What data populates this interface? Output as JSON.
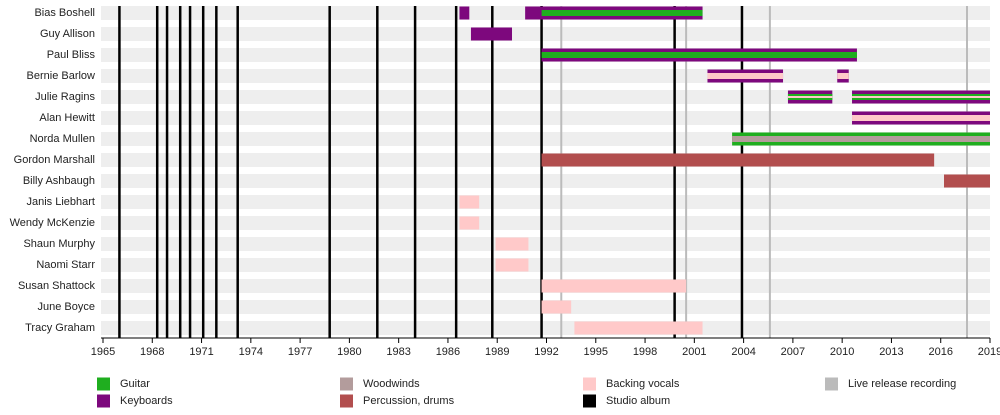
{
  "chart_data": {
    "type": "timeline",
    "xlim": [
      1965,
      2019
    ],
    "xticks": [
      1965,
      1968,
      1971,
      1974,
      1977,
      1980,
      1983,
      1986,
      1989,
      1992,
      1995,
      1998,
      2001,
      2004,
      2007,
      2010,
      2013,
      2016,
      2019
    ],
    "roles": [
      {
        "name": "Guitar",
        "color": "#1fae1f"
      },
      {
        "name": "Keyboards",
        "color": "#7d087d"
      },
      {
        "name": "Woodwinds",
        "color": "#b39c9c"
      },
      {
        "name": "Percussion, drums",
        "color": "#b24e4e"
      },
      {
        "name": "Backing vocals",
        "color": "#ffc9c9"
      }
    ],
    "events": [
      {
        "name": "Studio album",
        "color": "#000000",
        "x": [
          1966.0,
          1968.3,
          1968.9,
          1969.7,
          1970.3,
          1971.1,
          1971.9,
          1973.2,
          1978.8,
          1981.7,
          1984.0,
          1986.5,
          1988.7,
          1991.7,
          1999.8,
          2003.9
        ]
      },
      {
        "name": "Live release recording",
        "color": "#bbbbbb",
        "x": [
          1992.9,
          2000.5,
          2005.6,
          2017.6
        ]
      }
    ],
    "members": [
      {
        "name": "Bias Boshell",
        "periods": [
          {
            "role": "Keyboards",
            "start": 1986.7,
            "end": 1987.3
          },
          {
            "role": "Keyboards",
            "start": 1990.7,
            "end": 2001.5
          },
          {
            "role": "Guitar",
            "start": 1991.7,
            "end": 2001.5
          }
        ]
      },
      {
        "name": "Guy Allison",
        "periods": [
          {
            "role": "Keyboards",
            "start": 1987.4,
            "end": 1989.9
          }
        ]
      },
      {
        "name": "Paul Bliss",
        "periods": [
          {
            "role": "Keyboards",
            "start": 1991.7,
            "end": 2010.9
          },
          {
            "role": "Guitar",
            "start": 1991.7,
            "end": 2010.9
          }
        ]
      },
      {
        "name": "Bernie Barlow",
        "periods": [
          {
            "role": "Keyboards",
            "start": 2001.8,
            "end": 2006.4
          },
          {
            "role": "Backing vocals",
            "start": 2001.8,
            "end": 2006.4
          },
          {
            "role": "Keyboards",
            "start": 2009.7,
            "end": 2010.4
          },
          {
            "role": "Backing vocals",
            "start": 2009.7,
            "end": 2010.4
          }
        ]
      },
      {
        "name": "Julie Ragins",
        "periods": [
          {
            "role": "Keyboards",
            "start": 2006.7,
            "end": 2009.4
          },
          {
            "role": "Guitar",
            "start": 2006.7,
            "end": 2009.4
          },
          {
            "role": "Backing vocals",
            "start": 2006.7,
            "end": 2009.4
          },
          {
            "role": "Keyboards",
            "start": 2010.6,
            "end": 2019
          },
          {
            "role": "Guitar",
            "start": 2010.6,
            "end": 2019
          },
          {
            "role": "Backing vocals",
            "start": 2010.6,
            "end": 2019
          }
        ]
      },
      {
        "name": "Alan Hewitt",
        "periods": [
          {
            "role": "Keyboards",
            "start": 2010.6,
            "end": 2019
          },
          {
            "role": "Backing vocals",
            "start": 2010.6,
            "end": 2019
          }
        ]
      },
      {
        "name": "Norda Mullen",
        "periods": [
          {
            "role": "Guitar",
            "start": 2003.3,
            "end": 2019
          },
          {
            "role": "Woodwinds",
            "start": 2003.3,
            "end": 2019
          }
        ]
      },
      {
        "name": "Gordon Marshall",
        "periods": [
          {
            "role": "Percussion, drums",
            "start": 1991.7,
            "end": 2015.6
          }
        ]
      },
      {
        "name": "Billy Ashbaugh",
        "periods": [
          {
            "role": "Percussion, drums",
            "start": 2016.2,
            "end": 2019
          }
        ]
      },
      {
        "name": "Janis Liebhart",
        "periods": [
          {
            "role": "Backing vocals",
            "start": 1986.7,
            "end": 1987.9
          }
        ]
      },
      {
        "name": "Wendy McKenzie",
        "periods": [
          {
            "role": "Backing vocals",
            "start": 1986.7,
            "end": 1987.9
          }
        ]
      },
      {
        "name": "Shaun Murphy",
        "periods": [
          {
            "role": "Backing vocals",
            "start": 1988.9,
            "end": 1990.9
          }
        ]
      },
      {
        "name": "Naomi Starr",
        "periods": [
          {
            "role": "Backing vocals",
            "start": 1988.9,
            "end": 1990.9
          }
        ]
      },
      {
        "name": "Susan Shattock",
        "periods": [
          {
            "role": "Backing vocals",
            "start": 1991.7,
            "end": 2000.5
          }
        ]
      },
      {
        "name": "June Boyce",
        "periods": [
          {
            "role": "Backing vocals",
            "start": 1991.7,
            "end": 1993.5
          }
        ]
      },
      {
        "name": "Tracy Graham",
        "periods": [
          {
            "role": "Backing vocals",
            "start": 1993.7,
            "end": 2001.5
          }
        ]
      }
    ]
  }
}
